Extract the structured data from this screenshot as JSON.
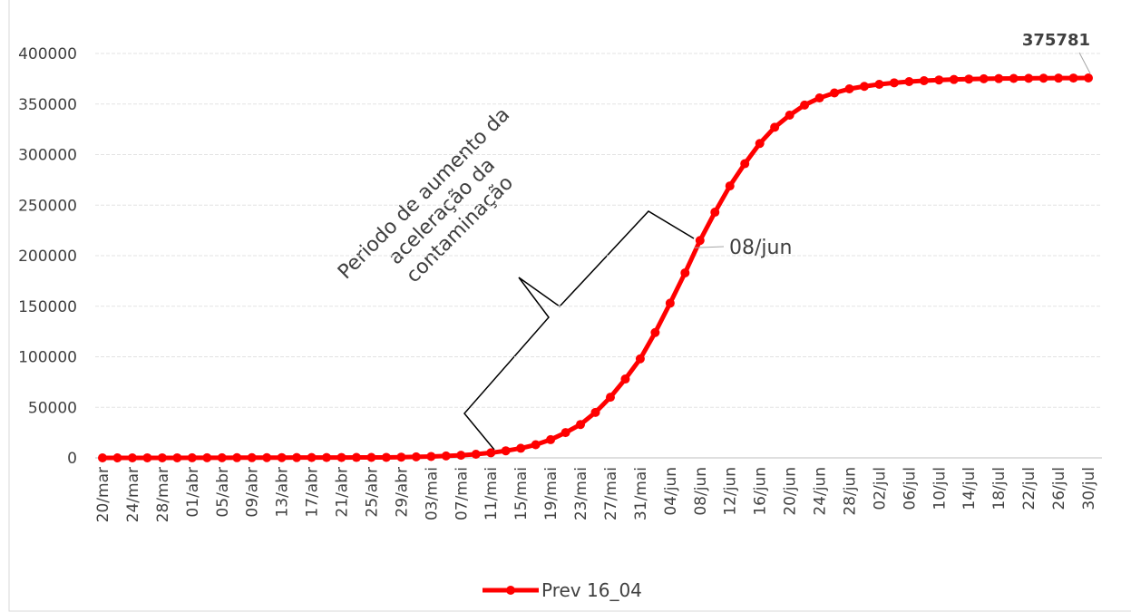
{
  "chart_data": {
    "type": "line",
    "categories": [
      "20/mar",
      null,
      "24/mar",
      null,
      "28/mar",
      null,
      "01/abr",
      null,
      "05/abr",
      null,
      "09/abr",
      null,
      "13/abr",
      null,
      "17/abr",
      null,
      "21/abr",
      null,
      "25/abr",
      null,
      "29/abr",
      null,
      "03/mai",
      null,
      "07/mai",
      null,
      "11/mai",
      null,
      "15/mai",
      null,
      "19/mai",
      null,
      "23/mai",
      null,
      "27/mai",
      null,
      "31/mai",
      null,
      "04/jun",
      null,
      "08/jun",
      null,
      "12/jun",
      null,
      "16/jun",
      null,
      "20/jun",
      null,
      "24/jun",
      null,
      "28/jun",
      null,
      "02/jul",
      null,
      "06/jul",
      null,
      "10/jul",
      null,
      "14/jul",
      null,
      "18/jul",
      null,
      "22/jul",
      null,
      "26/jul",
      null,
      "30/jul"
    ],
    "series": [
      {
        "name": "Prev 16_04",
        "color": "#ff0000",
        "values": [
          10,
          15,
          20,
          30,
          40,
          55,
          75,
          100,
          130,
          170,
          200,
          230,
          260,
          290,
          320,
          350,
          380,
          420,
          460,
          500,
          700,
          1000,
          1400,
          1900,
          2600,
          3600,
          5000,
          7000,
          9500,
          13000,
          18000,
          25000,
          33000,
          45000,
          60000,
          78000,
          98000,
          124000,
          153000,
          183000,
          215000,
          243000,
          269000,
          291000,
          311000,
          327000,
          339000,
          349000,
          356000,
          361000,
          365000,
          367500,
          369500,
          371000,
          372200,
          373100,
          373800,
          374300,
          374700,
          375000,
          375200,
          375350,
          375470,
          375560,
          375630,
          375700,
          375781
        ]
      }
    ],
    "ylim": [
      0,
      400000
    ],
    "yticks": [
      0,
      50000,
      100000,
      150000,
      200000,
      250000,
      300000,
      350000,
      400000
    ],
    "grid": true,
    "legend": "bottom",
    "annotation": [
      "Periodo de aumento da",
      "aceleração da",
      "contaminação"
    ]
  }
}
